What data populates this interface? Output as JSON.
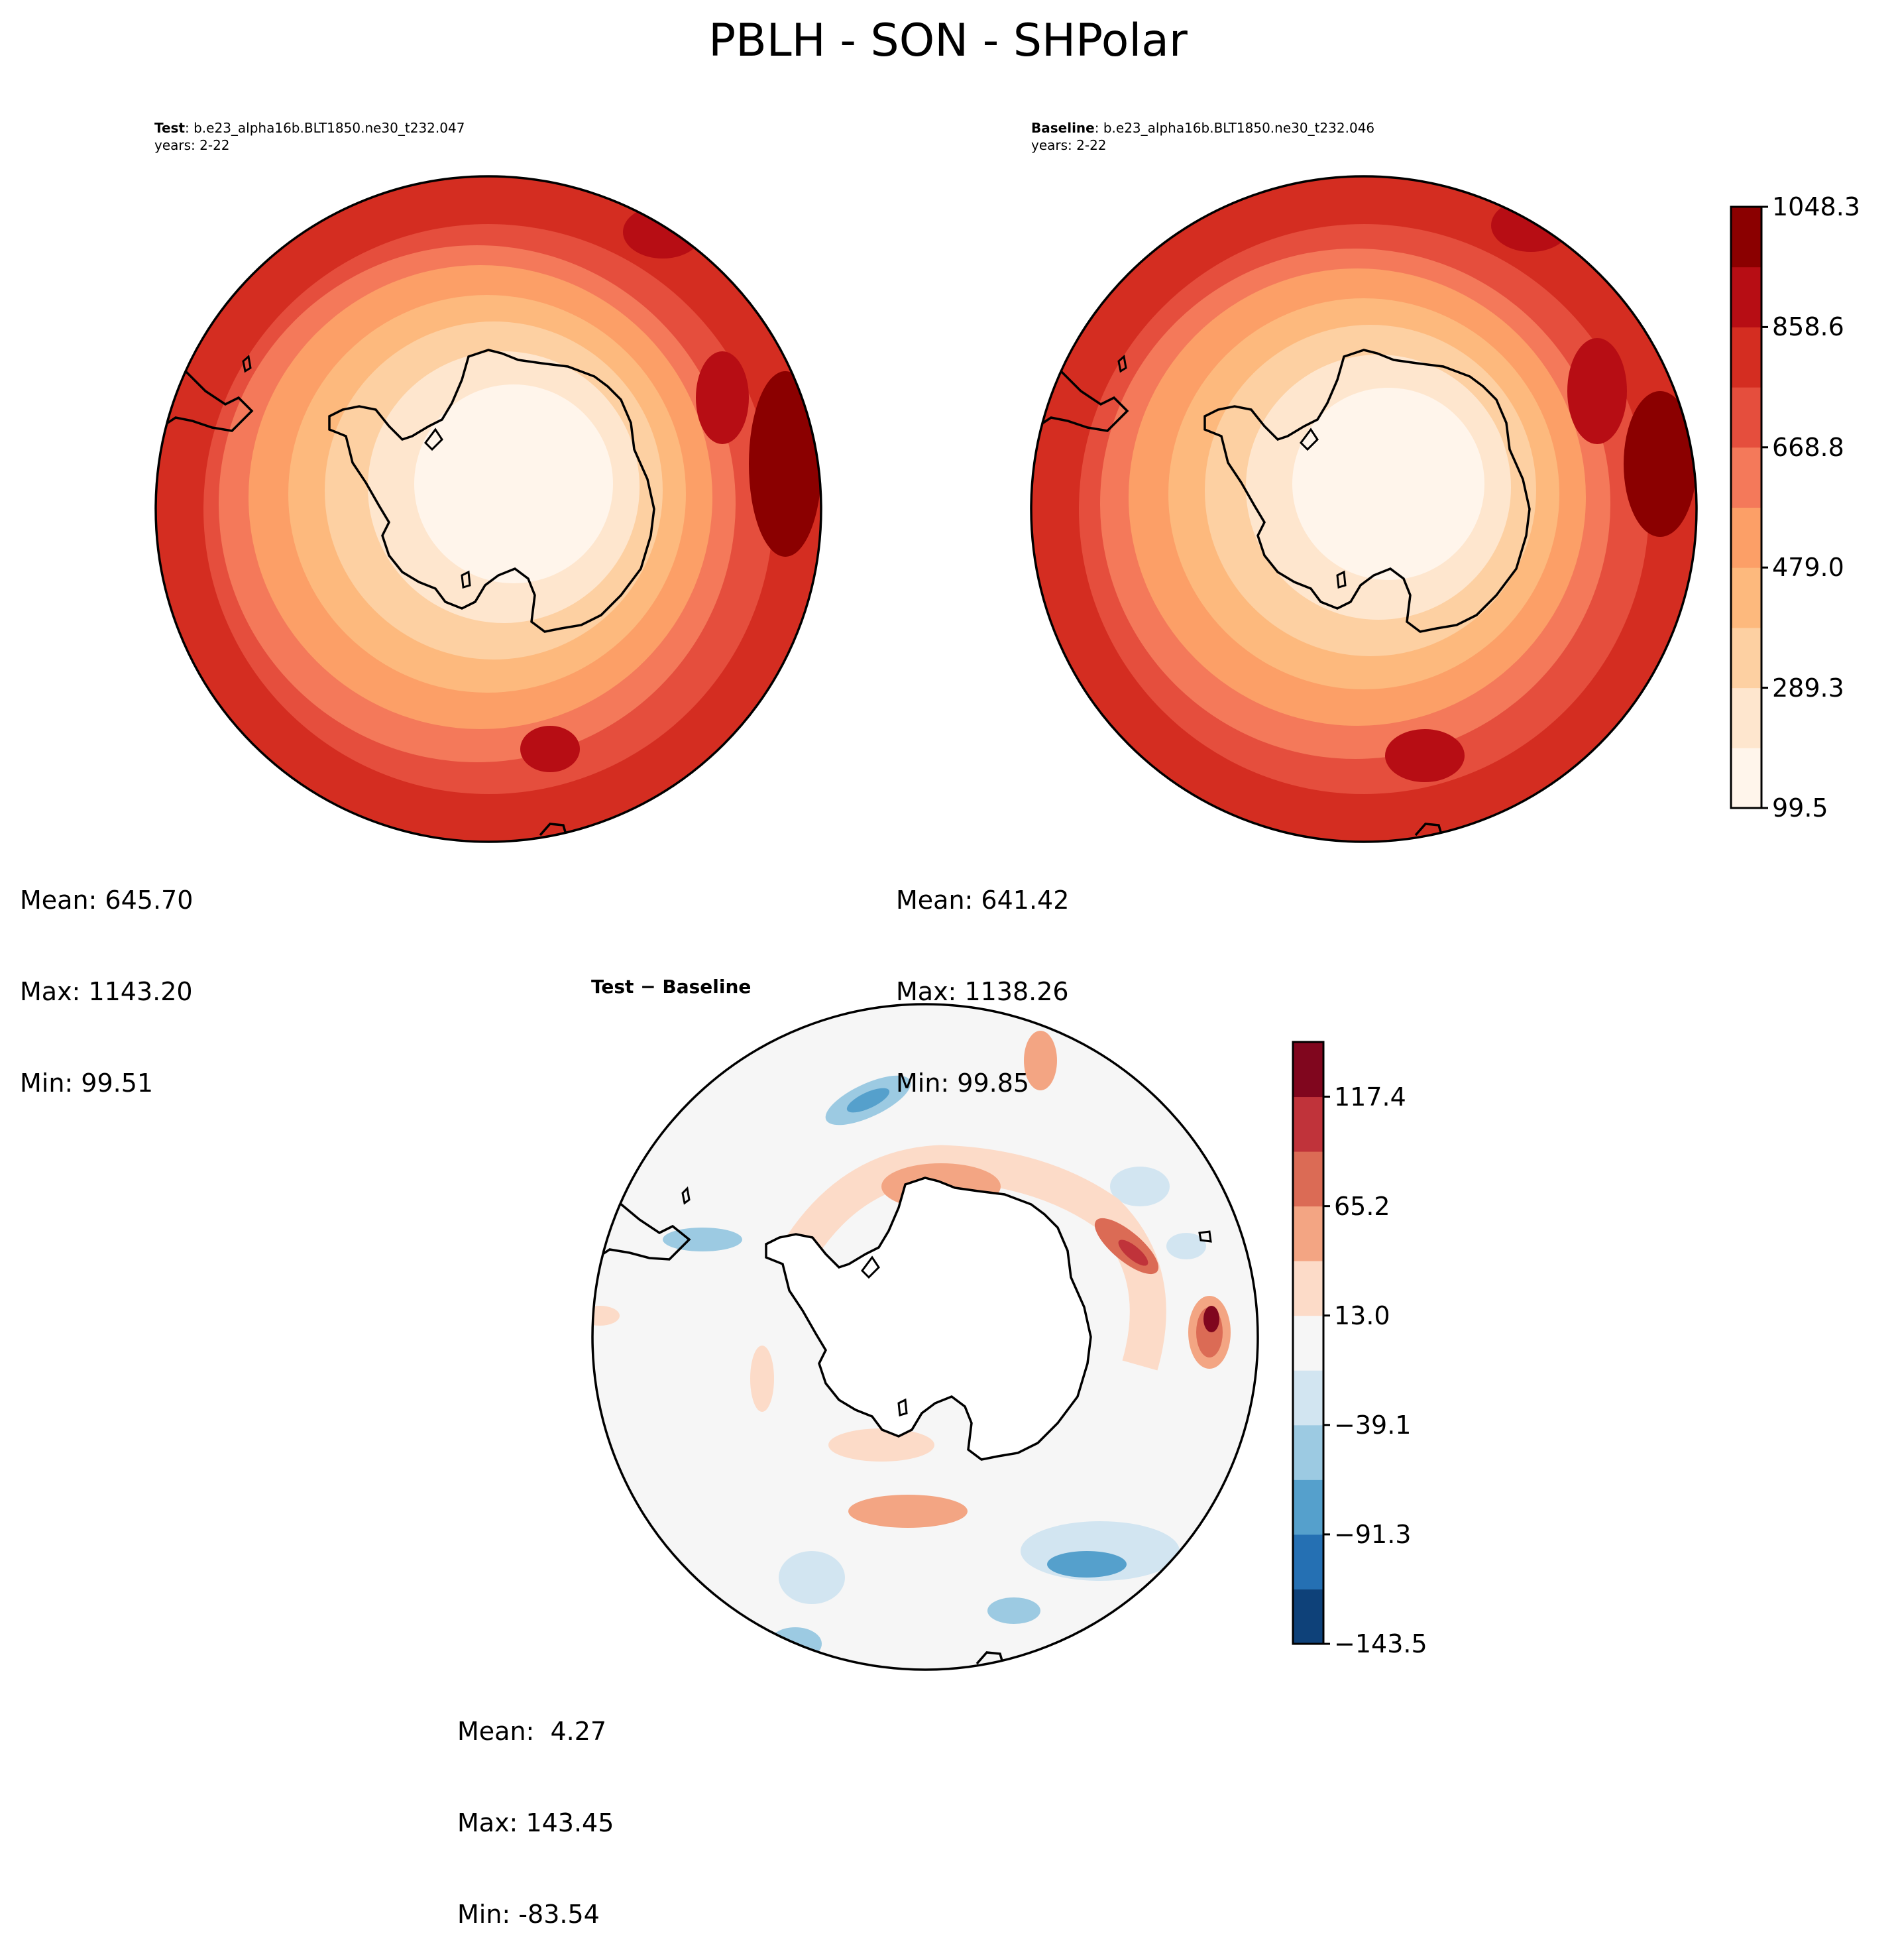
{
  "figure": {
    "title": "PBLH - SON - SHPolar"
  },
  "panels": {
    "test": {
      "label": "Test",
      "case": ": b.e23_alpha16b.BLT1850.ne30_t232.047",
      "years": "years: 2-22",
      "stats": {
        "mean": "Mean: 645.70",
        "max": "Max: 1143.20",
        "min": "Min: 99.51"
      }
    },
    "baseline": {
      "label": "Baseline",
      "case": ": b.e23_alpha16b.BLT1850.ne30_t232.046",
      "years": "years: 2-22",
      "stats": {
        "mean": "Mean: 641.42",
        "max": "Max: 1138.26",
        "min": "Min: 99.85"
      }
    },
    "diff": {
      "title": "Test − Baseline",
      "stats": {
        "mean": "Mean:  4.27",
        "max": "Max: 143.45",
        "min": "Min: -83.54"
      }
    }
  },
  "colorbars": {
    "main": {
      "ticks": [
        "99.5",
        "289.3",
        "479.0",
        "668.8",
        "858.6",
        "1048.3"
      ],
      "colors": [
        "#fff5eb",
        "#fee6ce",
        "#fdd0a2",
        "#fdb97d",
        "#fc9f67",
        "#f4795a",
        "#e54e3d",
        "#d42d21",
        "#b70d14",
        "#8b0000"
      ]
    },
    "diff": {
      "ticks": [
        "−143.5",
        "−91.3",
        "−39.1",
        "13.0",
        "65.2",
        "117.4"
      ],
      "colors": [
        "#0e4179",
        "#2570b3",
        "#55a0cc",
        "#9ccae2",
        "#d2e5f1",
        "#f6f6f6",
        "#fcdbc8",
        "#f3a583",
        "#db6b55",
        "#c0333a",
        "#80061e"
      ]
    }
  }
}
